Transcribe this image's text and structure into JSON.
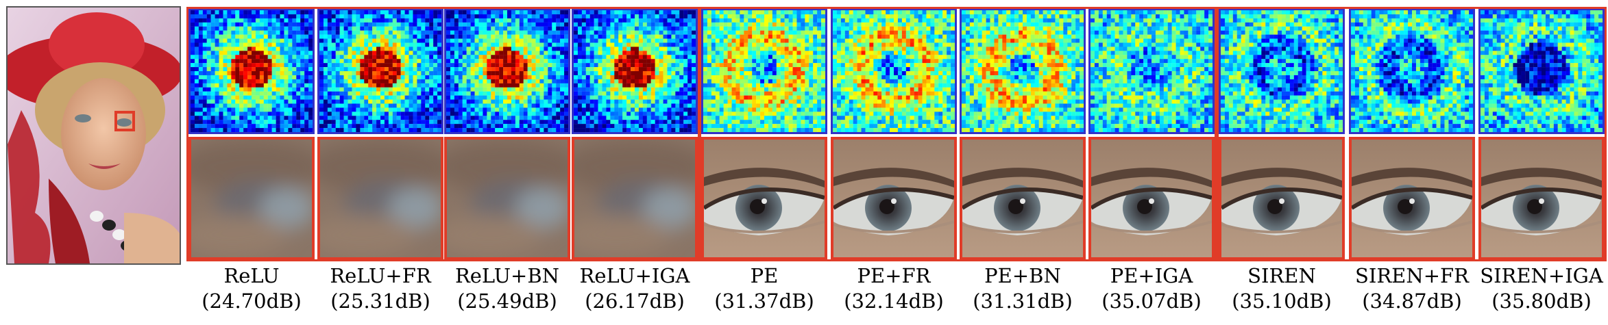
{
  "reference": {
    "subject": "portrait-woman-red-hat",
    "zoom_box_color": "#e03c28"
  },
  "colors": {
    "heat_border": "#3232c8",
    "crop_border": "#e03c28",
    "heat_low": "#1e2dd2",
    "heat_high": "#8c0000"
  },
  "methods": [
    {
      "name": "ReLU",
      "psnr": "(24.70dB)",
      "group": "ReLU",
      "pattern": "hot-center",
      "crop": "blurry"
    },
    {
      "name": "ReLU+FR",
      "psnr": "(25.31dB)",
      "group": "ReLU",
      "pattern": "hot-center",
      "crop": "blurry"
    },
    {
      "name": "ReLU+BN",
      "psnr": "(25.49dB)",
      "group": "ReLU",
      "pattern": "hot-center",
      "crop": "blurry"
    },
    {
      "name": "ReLU+IGA",
      "psnr": "(26.17dB)",
      "group": "ReLU",
      "pattern": "hot-center",
      "crop": "blurry"
    },
    {
      "name": "PE",
      "psnr": "(31.37dB)",
      "group": "PE",
      "pattern": "ring",
      "crop": "sharp-eye"
    },
    {
      "name": "PE+FR",
      "psnr": "(32.14dB)",
      "group": "PE",
      "pattern": "ring",
      "crop": "sharp-eye"
    },
    {
      "name": "PE+BN",
      "psnr": "(31.31dB)",
      "group": "PE",
      "pattern": "ring",
      "crop": "sharp-eye"
    },
    {
      "name": "PE+IGA",
      "psnr": "(35.07dB)",
      "group": "PE",
      "pattern": "cool",
      "crop": "sharp-eye"
    },
    {
      "name": "SIREN",
      "psnr": "(35.10dB)",
      "group": "SIREN",
      "pattern": "cold-ring",
      "crop": "sharp-eye"
    },
    {
      "name": "SIREN+FR",
      "psnr": "(34.87dB)",
      "group": "SIREN",
      "pattern": "cold-ring",
      "crop": "sharp-eye"
    },
    {
      "name": "SIREN+IGA",
      "psnr": "(35.80dB)",
      "group": "SIREN",
      "pattern": "cold-center",
      "crop": "sharp-eye"
    }
  ]
}
